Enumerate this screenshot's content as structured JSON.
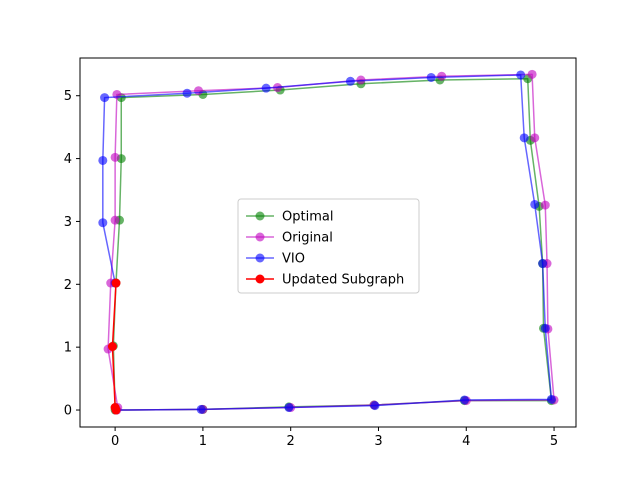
{
  "chart_data": {
    "type": "line",
    "title": "",
    "xlabel": "",
    "ylabel": "",
    "xlim": [
      -0.4,
      5.25
    ],
    "ylim": [
      -0.27,
      5.6
    ],
    "xticks": [
      0,
      1,
      2,
      3,
      4,
      5
    ],
    "yticks": [
      0,
      1,
      2,
      3,
      4,
      5
    ],
    "grid": false,
    "legend_position": "center",
    "series": [
      {
        "name": "Optimal",
        "color": "#008000",
        "alpha": 0.6,
        "points": [
          [
            0.0,
            0.0
          ],
          [
            1.0,
            0.01
          ],
          [
            1.98,
            0.05
          ],
          [
            2.95,
            0.08
          ],
          [
            3.98,
            0.15
          ],
          [
            4.97,
            0.15
          ],
          [
            4.88,
            1.3
          ],
          [
            4.87,
            2.33
          ],
          [
            4.83,
            3.24
          ],
          [
            4.73,
            4.29
          ],
          [
            4.7,
            5.27
          ],
          [
            3.7,
            5.25
          ],
          [
            2.8,
            5.19
          ],
          [
            1.88,
            5.09
          ],
          [
            1.0,
            5.02
          ],
          [
            0.07,
            4.97
          ],
          [
            0.07,
            4.0
          ],
          [
            0.05,
            3.02
          ],
          [
            0.01,
            2.02
          ],
          [
            -0.02,
            1.02
          ],
          [
            0.0,
            0.04
          ]
        ]
      },
      {
        "name": "Original",
        "color": "#bf00bf",
        "alpha": 0.6,
        "points": [
          [
            0.03,
            0.04
          ],
          [
            -0.08,
            0.97
          ],
          [
            -0.05,
            2.02
          ],
          [
            0.0,
            3.02
          ],
          [
            0.0,
            4.02
          ],
          [
            0.02,
            5.02
          ],
          [
            0.95,
            5.08
          ],
          [
            1.85,
            5.13
          ],
          [
            2.8,
            5.25
          ],
          [
            3.72,
            5.31
          ],
          [
            4.75,
            5.34
          ],
          [
            4.78,
            4.33
          ],
          [
            4.9,
            3.26
          ],
          [
            4.92,
            2.33
          ],
          [
            4.93,
            1.29
          ],
          [
            5.0,
            0.16
          ],
          [
            4.0,
            0.15
          ],
          [
            2.95,
            0.08
          ],
          [
            2.0,
            0.04
          ],
          [
            1.0,
            0.01
          ],
          [
            0.02,
            0.0
          ]
        ]
      },
      {
        "name": "VIO",
        "color": "#0000ff",
        "alpha": 0.6,
        "points": [
          [
            0.01,
            0.0
          ],
          [
            0.98,
            0.01
          ],
          [
            1.98,
            0.04
          ],
          [
            2.96,
            0.07
          ],
          [
            3.98,
            0.16
          ],
          [
            4.97,
            0.17
          ],
          [
            4.9,
            1.3
          ],
          [
            4.87,
            2.33
          ],
          [
            4.78,
            3.27
          ],
          [
            4.66,
            4.33
          ],
          [
            4.62,
            5.33
          ],
          [
            3.6,
            5.29
          ],
          [
            2.68,
            5.23
          ],
          [
            1.72,
            5.12
          ],
          [
            0.82,
            5.04
          ],
          [
            -0.12,
            4.97
          ],
          [
            -0.14,
            3.97
          ],
          [
            -0.14,
            2.98
          ],
          [
            0.0,
            2.02
          ]
        ]
      },
      {
        "name": "Updated Subgraph",
        "color": "#ff0000",
        "alpha": 1.0,
        "points": [
          [
            0.01,
            2.02
          ],
          [
            -0.03,
            1.01
          ],
          [
            0.0,
            0.04
          ],
          [
            0.01,
            0.0
          ]
        ]
      }
    ]
  }
}
